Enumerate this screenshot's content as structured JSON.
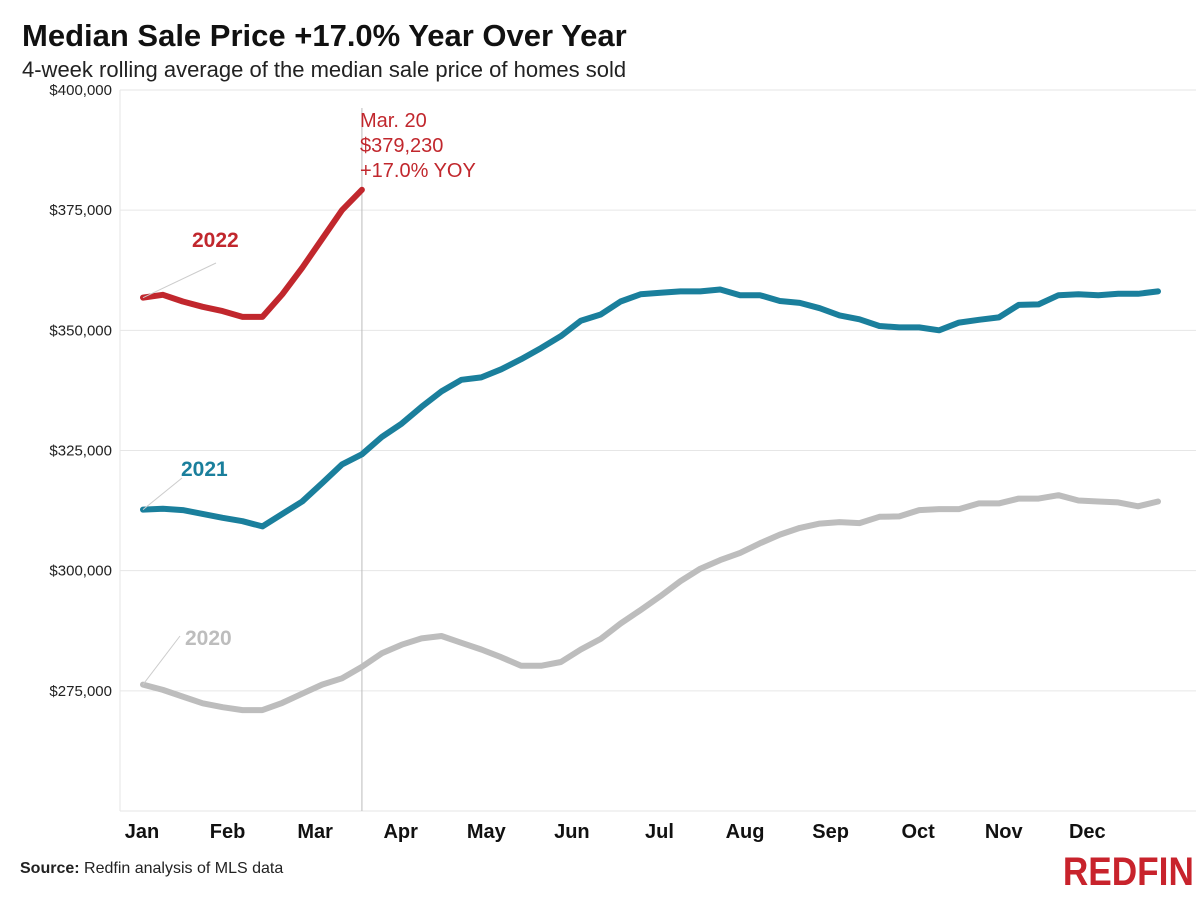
{
  "header": {
    "title": "Median Sale Price +17.0% Year Over Year",
    "subtitle": "4-week rolling average of the median sale price of homes sold"
  },
  "footer": {
    "source_bold": "Source:",
    "source_text": " Redfin analysis of MLS data",
    "logo": "REDFIN"
  },
  "colors": {
    "2022": "#c1272d",
    "2021": "#1a7f9c",
    "2020": "#bdbdbd",
    "grid": "#e6e6e6",
    "marker": "#bbbbbb"
  },
  "chart_data": {
    "type": "line",
    "title": "Median Sale Price +17.0% Year Over Year",
    "subtitle": "4-week rolling average of the median sale price of homes sold",
    "x_unit": "week of year",
    "x_labels": [
      "Jan",
      "Feb",
      "Mar",
      "Apr",
      "May",
      "Jun",
      "Jul",
      "Aug",
      "Sep",
      "Oct",
      "Nov",
      "Dec"
    ],
    "y_ticks": [
      275000,
      300000,
      325000,
      350000,
      375000,
      400000
    ],
    "y_tick_labels": [
      "$275,000",
      "$300,000",
      "$325,000",
      "$350,000",
      "$375,000",
      "$400,000"
    ],
    "ylim": [
      250000,
      400000
    ],
    "xlim": [
      1,
      53
    ],
    "grid": true,
    "series": [
      {
        "name": "2022",
        "x": [
          1,
          2,
          3,
          4,
          5,
          6,
          7,
          8,
          9,
          10,
          11,
          12
        ],
        "values": [
          356800,
          357400,
          356000,
          354900,
          354000,
          352800,
          352800,
          357500,
          363000,
          369000,
          375000,
          379230
        ]
      },
      {
        "name": "2021",
        "x": [
          1,
          2,
          3,
          4,
          5,
          6,
          7,
          8,
          9,
          10,
          11,
          12,
          13,
          14,
          15,
          16,
          17,
          18,
          19,
          20,
          21,
          22,
          23,
          24,
          25,
          26,
          27,
          28,
          29,
          30,
          31,
          32,
          33,
          34,
          35,
          36,
          37,
          38,
          39,
          40,
          41,
          42,
          43,
          44,
          45,
          46,
          47,
          48,
          49,
          50,
          51,
          52
        ],
        "values": [
          312700,
          312900,
          312600,
          311800,
          311000,
          310300,
          309200,
          311800,
          314400,
          318200,
          322100,
          324200,
          327800,
          330600,
          334100,
          337300,
          339700,
          340200,
          341900,
          344000,
          346300,
          348800,
          352000,
          353300,
          356000,
          357500,
          357800,
          358100,
          358100,
          358500,
          357300,
          357300,
          356100,
          355700,
          354600,
          353100,
          352300,
          350900,
          350600,
          350600,
          350000,
          351600,
          352200,
          352700,
          355300,
          355400,
          357300,
          357500,
          357300,
          357600,
          357600,
          358100
        ]
      },
      {
        "name": "2020",
        "x": [
          1,
          2,
          3,
          4,
          5,
          6,
          7,
          8,
          9,
          10,
          11,
          12,
          13,
          14,
          15,
          16,
          17,
          18,
          19,
          20,
          21,
          22,
          23,
          24,
          25,
          26,
          27,
          28,
          29,
          30,
          31,
          32,
          33,
          34,
          35,
          36,
          37,
          38,
          39,
          40,
          41,
          42,
          43,
          44,
          45,
          46,
          47,
          48,
          49,
          50,
          51,
          52
        ],
        "values": [
          276300,
          275200,
          273800,
          272400,
          271600,
          271000,
          271000,
          272500,
          274400,
          276300,
          277600,
          280000,
          282800,
          284600,
          285900,
          286400,
          285000,
          283600,
          282000,
          280200,
          280200,
          281000,
          283600,
          285800,
          289000,
          291800,
          294700,
          297800,
          300400,
          302200,
          303700,
          305700,
          307500,
          308900,
          309800,
          310100,
          309900,
          311200,
          311300,
          312600,
          312800,
          312800,
          314000,
          314000,
          315000,
          315000,
          315700,
          314600,
          314400,
          314200,
          313400,
          314400
        ]
      }
    ],
    "annotations": [
      {
        "series": "2022",
        "lines": [
          "Mar. 20",
          "$379,230",
          "+17.0% YOY"
        ],
        "x": 12
      }
    ],
    "series_labels": [
      "2022",
      "2021",
      "2020"
    ]
  }
}
